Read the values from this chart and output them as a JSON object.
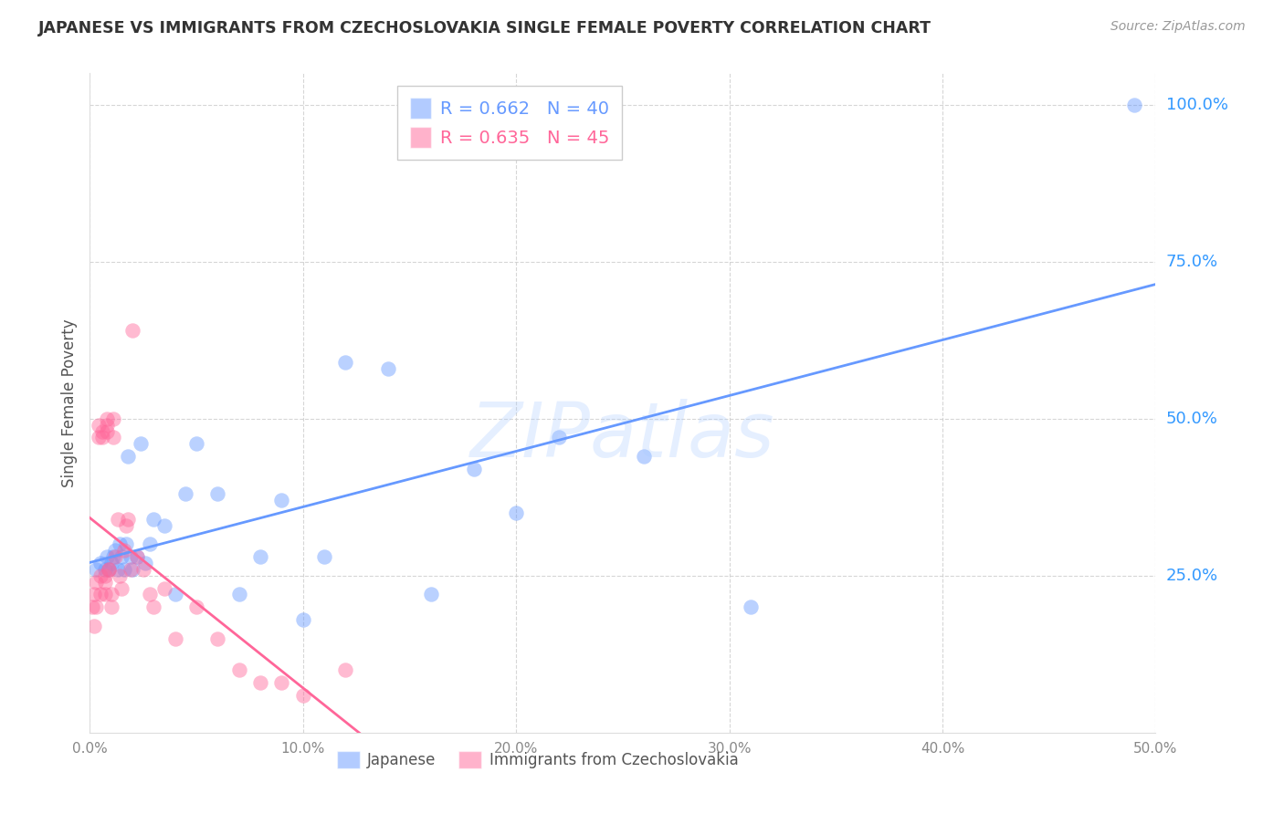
{
  "title": "JAPANESE VS IMMIGRANTS FROM CZECHOSLOVAKIA SINGLE FEMALE POVERTY CORRELATION CHART",
  "source": "Source: ZipAtlas.com",
  "ylabel": "Single Female Poverty",
  "xlabel": "",
  "xlim": [
    0.0,
    0.5
  ],
  "ylim": [
    0.0,
    1.05
  ],
  "xticks": [
    0.0,
    0.1,
    0.2,
    0.3,
    0.4,
    0.5
  ],
  "yticks": [
    0.25,
    0.5,
    0.75,
    1.0
  ],
  "ytick_labels": [
    "25.0%",
    "50.0%",
    "75.0%",
    "100.0%"
  ],
  "xtick_labels": [
    "0.0%",
    "10.0%",
    "20.0%",
    "30.0%",
    "40.0%",
    "50.0%"
  ],
  "grid_color": "#cccccc",
  "background_color": "#ffffff",
  "watermark": "ZIPatlas",
  "japanese_x": [
    0.003,
    0.005,
    0.007,
    0.008,
    0.009,
    0.01,
    0.011,
    0.012,
    0.013,
    0.014,
    0.015,
    0.016,
    0.017,
    0.018,
    0.019,
    0.02,
    0.022,
    0.024,
    0.026,
    0.028,
    0.03,
    0.035,
    0.04,
    0.045,
    0.05,
    0.06,
    0.07,
    0.08,
    0.09,
    0.1,
    0.11,
    0.12,
    0.14,
    0.16,
    0.18,
    0.2,
    0.22,
    0.26,
    0.31,
    0.49
  ],
  "japanese_y": [
    0.26,
    0.27,
    0.26,
    0.28,
    0.26,
    0.27,
    0.28,
    0.29,
    0.26,
    0.3,
    0.28,
    0.26,
    0.3,
    0.44,
    0.28,
    0.26,
    0.28,
    0.46,
    0.27,
    0.3,
    0.34,
    0.33,
    0.22,
    0.38,
    0.46,
    0.38,
    0.22,
    0.28,
    0.37,
    0.18,
    0.28,
    0.59,
    0.58,
    0.22,
    0.42,
    0.35,
    0.47,
    0.44,
    0.2,
    1.0
  ],
  "czech_x": [
    0.001,
    0.002,
    0.002,
    0.003,
    0.003,
    0.004,
    0.004,
    0.005,
    0.005,
    0.006,
    0.006,
    0.007,
    0.007,
    0.007,
    0.008,
    0.008,
    0.008,
    0.009,
    0.009,
    0.01,
    0.01,
    0.011,
    0.011,
    0.012,
    0.013,
    0.014,
    0.015,
    0.016,
    0.017,
    0.018,
    0.019,
    0.02,
    0.022,
    0.025,
    0.028,
    0.03,
    0.035,
    0.04,
    0.05,
    0.06,
    0.07,
    0.08,
    0.09,
    0.1,
    0.12
  ],
  "czech_y": [
    0.2,
    0.22,
    0.17,
    0.24,
    0.2,
    0.47,
    0.49,
    0.22,
    0.25,
    0.48,
    0.47,
    0.25,
    0.22,
    0.24,
    0.5,
    0.49,
    0.48,
    0.26,
    0.26,
    0.2,
    0.22,
    0.5,
    0.47,
    0.28,
    0.34,
    0.25,
    0.23,
    0.29,
    0.33,
    0.34,
    0.26,
    0.64,
    0.28,
    0.26,
    0.22,
    0.2,
    0.23,
    0.15,
    0.2,
    0.15,
    0.1,
    0.08,
    0.08,
    0.06,
    0.1
  ],
  "legend_colors": [
    "#6699ff",
    "#ff6699"
  ],
  "legend_R": [
    0.662,
    0.635
  ],
  "legend_N": [
    40,
    45
  ],
  "legend_labels": [
    "Japanese",
    "Immigrants from Czechoslovakia"
  ],
  "axis_color": "#3399ff",
  "title_color": "#333333",
  "source_color": "#999999",
  "ylabel_color": "#555555"
}
